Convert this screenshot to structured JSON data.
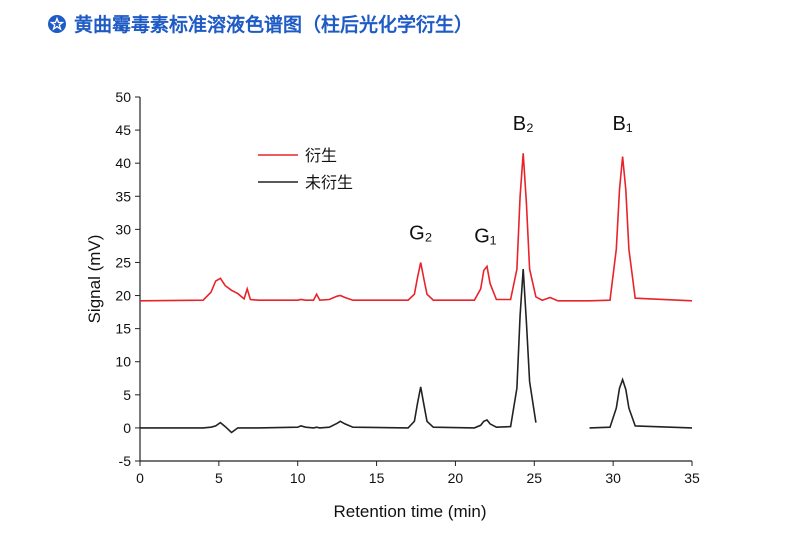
{
  "chart_data": {
    "type": "line",
    "title": "黄曲霉毒素标准溶液色谱图（柱后光化学衍生）",
    "x_label": "Retention time (min)",
    "y_label": "Signal (mV)",
    "xlim": [
      0,
      35
    ],
    "xticks": [
      0,
      5,
      10,
      15,
      20,
      25,
      30,
      35
    ],
    "ylim": [
      -5,
      50
    ],
    "yticks": [
      -5,
      0,
      5,
      10,
      15,
      20,
      25,
      30,
      35,
      40,
      45,
      50
    ],
    "x": [
      0,
      4,
      4.5,
      4.8,
      5.1,
      5.4,
      5.8,
      6.2,
      6.6,
      6.8,
      7.0,
      7.5,
      10,
      10.2,
      10.5,
      11,
      11.2,
      11.4,
      12,
      12.5,
      12.7,
      13,
      13.5,
      17,
      17.4,
      17.6,
      17.8,
      18,
      18.2,
      18.6,
      21.2,
      21.6,
      21.8,
      22,
      22.2,
      22.6,
      23.5,
      23.9,
      24.1,
      24.3,
      24.5,
      24.7,
      25.1,
      25.5,
      26,
      26.5,
      28.5,
      29.8,
      30.2,
      30.4,
      30.6,
      30.8,
      31,
      31.4,
      35
    ],
    "series": [
      {
        "name": "衍生",
        "color": "#e8232a",
        "values": [
          19.2,
          19.3,
          20.5,
          22.2,
          22.6,
          21.5,
          20.8,
          20.3,
          19.5,
          21.0,
          19.4,
          19.3,
          19.3,
          19.4,
          19.3,
          19.3,
          20.2,
          19.3,
          19.4,
          19.9,
          20.0,
          19.7,
          19.3,
          19.3,
          20.2,
          22.8,
          25,
          22.5,
          20.2,
          19.3,
          19.3,
          21.0,
          23.8,
          24.4,
          21.8,
          19.4,
          19.4,
          24,
          35,
          41.5,
          34,
          24,
          19.8,
          19.3,
          19.7,
          19.2,
          19.2,
          19.3,
          27,
          36,
          41,
          36,
          27,
          19.6,
          19.2
        ]
      },
      {
        "name": "未衍生",
        "color": "#222222",
        "values": [
          0,
          0,
          0.1,
          0.3,
          0.8,
          0.2,
          -0.7,
          0,
          0,
          0,
          0,
          0,
          0.1,
          0.3,
          0.1,
          0,
          0.1,
          0,
          0.1,
          0.7,
          1.0,
          0.6,
          0.1,
          0,
          1.0,
          3.8,
          6.2,
          3.5,
          1.0,
          0.1,
          0,
          0.4,
          1.0,
          1.2,
          0.6,
          0.1,
          0.2,
          6,
          17,
          24,
          16,
          7,
          0.8,
          null,
          null,
          null,
          0,
          0.1,
          3,
          6,
          7.3,
          5.8,
          3,
          0.3,
          0
        ]
      }
    ],
    "annotations": [
      {
        "text": "G₂",
        "x": 17.8,
        "y": 28.5
      },
      {
        "text": "G₁",
        "x": 21.9,
        "y": 28
      },
      {
        "text": "B₂",
        "x": 24.3,
        "y": 45
      },
      {
        "text": "B₁",
        "x": 30.6,
        "y": 45
      }
    ]
  }
}
